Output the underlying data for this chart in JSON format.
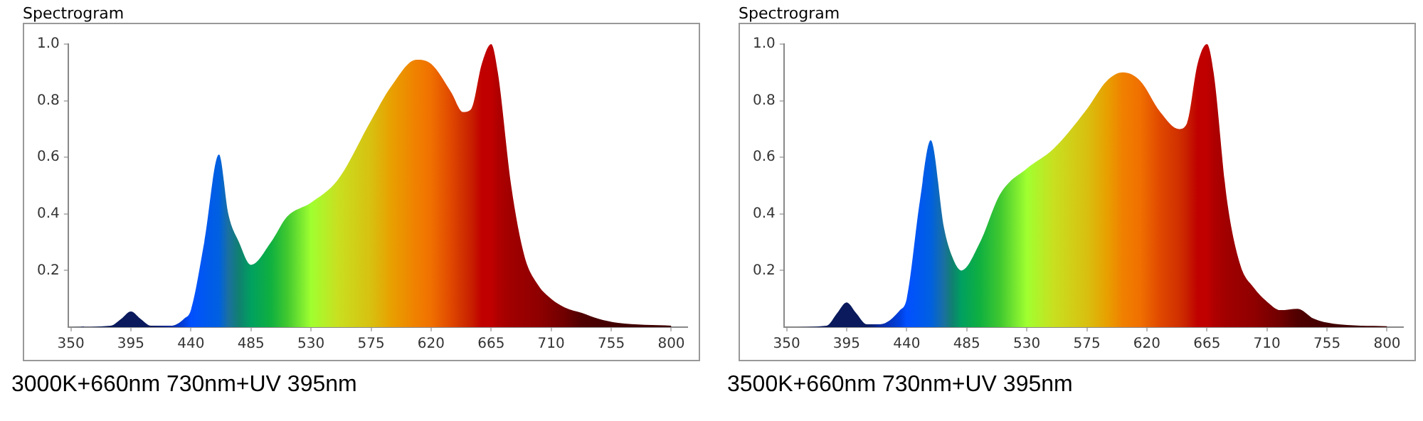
{
  "chart_data": [
    {
      "type": "area",
      "title": "Spectrogram",
      "annotations": [
        "3000K+660nm 730nm+UV 395nm"
      ],
      "xlim": [
        348,
        812
      ],
      "ylim": [
        0,
        1
      ],
      "xticks": [
        350,
        395,
        440,
        485,
        530,
        575,
        620,
        665,
        710,
        755,
        800
      ],
      "yticks": [
        0.2,
        0.4,
        0.6,
        0.8,
        {
          "value": 1,
          "label": "1.0"
        }
      ],
      "grid": false,
      "legend": false,
      "series": [
        {
          "x": [
            350,
            380,
            388,
            395,
            402,
            410,
            425,
            435,
            440,
            450,
            461,
            468,
            476,
            485,
            500,
            512,
            530,
            550,
            575,
            590,
            609,
            620,
            635,
            644,
            650,
            658,
            665,
            670,
            680,
            690,
            700,
            710,
            720,
            733,
            745,
            760,
            800
          ],
          "values": [
            0,
            0.005,
            0.03,
            0.055,
            0.03,
            0.005,
            0.005,
            0.03,
            0.06,
            0.3,
            0.61,
            0.4,
            0.3,
            0.22,
            0.3,
            0.39,
            0.44,
            0.52,
            0.73,
            0.85,
            0.945,
            0.93,
            0.83,
            0.76,
            0.77,
            0.93,
            1,
            0.9,
            0.5,
            0.25,
            0.15,
            0.1,
            0.07,
            0.05,
            0.03,
            0.015,
            0.005
          ],
          "colors": [
            "#0a1a5c",
            "#0a1a5c",
            "#0a1a5c",
            "#0a1a5c",
            "#0a1a5c",
            "#0a1a5c",
            "#0a2aa0",
            "#0040e0",
            "#0050ff",
            "#0058f0",
            "#0060e0",
            "#1a70a0",
            "#108070",
            "#00a060",
            "#10b040",
            "#40c830",
            "#a0ff30",
            "#c8e020",
            "#d8c010",
            "#e8a000",
            "#f08000",
            "#f07000",
            "#e04800",
            "#d03000",
            "#c82000",
            "#c00000",
            "#c00000",
            "#b00000",
            "#a00000",
            "#980000",
            "#900000",
            "#800000",
            "#700000",
            "#500000",
            "#480000",
            "#400000",
            "#400000"
          ]
        }
      ]
    },
    {
      "type": "area",
      "title": "Spectrogram",
      "annotations": [
        "3500K+660nm 730nm+UV 395nm"
      ],
      "xlim": [
        348,
        812
      ],
      "ylim": [
        0,
        1
      ],
      "xticks": [
        350,
        395,
        440,
        485,
        530,
        575,
        620,
        665,
        710,
        755,
        800
      ],
      "yticks": [
        0.2,
        0.4,
        0.6,
        0.8,
        {
          "value": 1,
          "label": "1.0"
        }
      ],
      "grid": false,
      "legend": false,
      "series": [
        {
          "x": [
            350,
            380,
            388,
            395,
            402,
            410,
            420,
            435,
            440,
            450,
            458,
            468,
            474,
            481,
            495,
            510,
            530,
            550,
            575,
            590,
            602,
            615,
            630,
            644,
            650,
            658,
            665,
            670,
            680,
            690,
            700,
            710,
            720,
            733,
            745,
            760,
            800
          ],
          "values": [
            0,
            0.005,
            0.05,
            0.087,
            0.05,
            0.01,
            0.01,
            0.06,
            0.1,
            0.45,
            0.66,
            0.35,
            0.25,
            0.2,
            0.3,
            0.47,
            0.56,
            0.63,
            0.77,
            0.87,
            0.9,
            0.87,
            0.76,
            0.7,
            0.72,
            0.93,
            1,
            0.9,
            0.45,
            0.22,
            0.14,
            0.09,
            0.06,
            0.065,
            0.03,
            0.012,
            0.003
          ],
          "colors": [
            "#0a1a5c",
            "#0a1a5c",
            "#0a1a5c",
            "#0a1a5c",
            "#0a1a5c",
            "#0a1a5c",
            "#0a2aa0",
            "#0040e0",
            "#0050ff",
            "#0058f0",
            "#0060e0",
            "#1a70a0",
            "#108070",
            "#00a060",
            "#10b040",
            "#40c830",
            "#a0ff30",
            "#c8e020",
            "#d8c010",
            "#e8a000",
            "#f08000",
            "#f07000",
            "#e04800",
            "#d03000",
            "#c82000",
            "#c00000",
            "#c00000",
            "#b00000",
            "#a00000",
            "#980000",
            "#900000",
            "#800000",
            "#700000",
            "#500000",
            "#480000",
            "#400000",
            "#400000"
          ]
        }
      ]
    }
  ]
}
